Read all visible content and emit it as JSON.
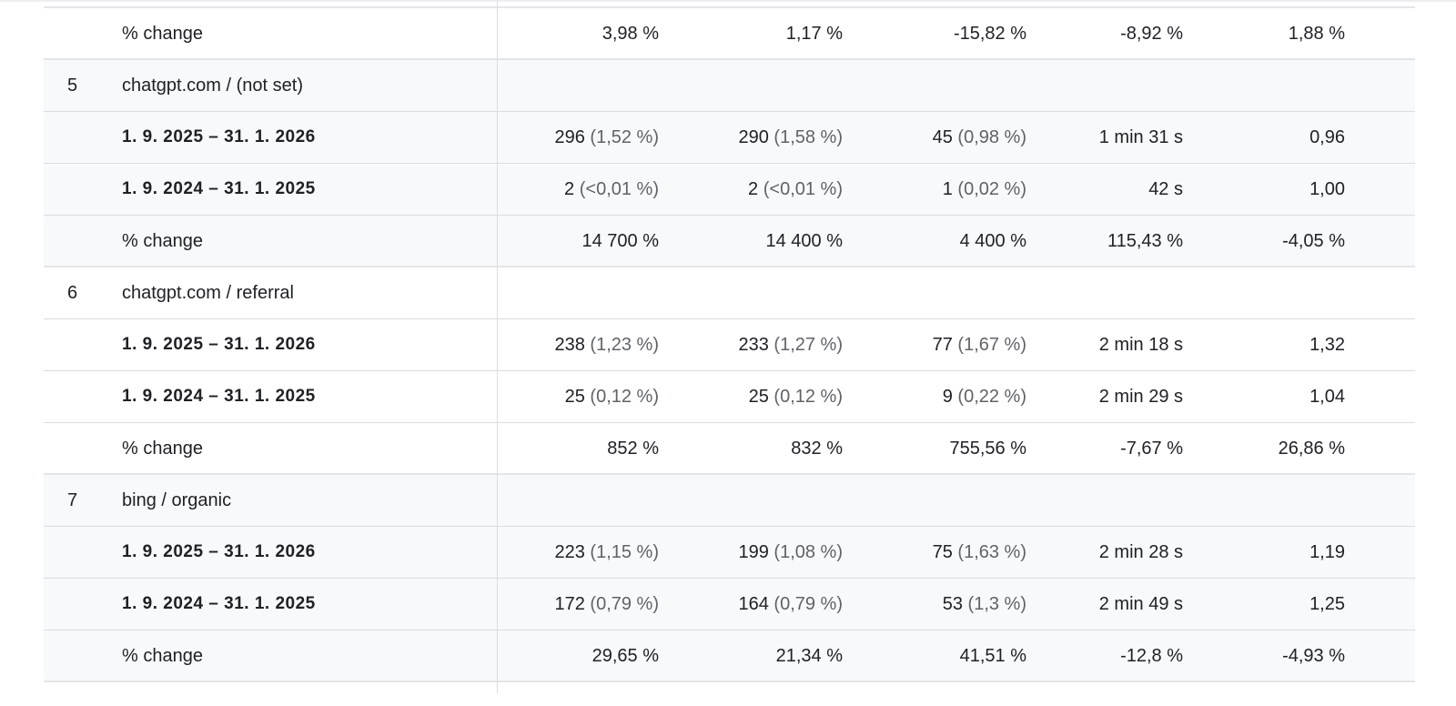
{
  "table": {
    "top_partial": {
      "label": "% change",
      "values": [
        "3,98 %",
        "1,17 %",
        "-15,82 %",
        "-8,92 %",
        "1,88 %"
      ]
    },
    "groups": [
      {
        "rank": "5",
        "name": "chatgpt.com / (not set)",
        "background": "#f8f9fa",
        "current": {
          "label": "1. 9. 2025 – 31. 1. 2026",
          "c1": {
            "value": "296",
            "share": "(1,52 %)"
          },
          "c2": {
            "value": "290",
            "share": "(1,58 %)"
          },
          "c3": {
            "value": "45",
            "share": "(0,98 %)"
          },
          "c4": "1 min 31 s",
          "c5": "0,96"
        },
        "previous": {
          "label": "1. 9. 2024 – 31. 1. 2025",
          "c1": {
            "value": "2",
            "share": "(<0,01 %)"
          },
          "c2": {
            "value": "2",
            "share": "(<0,01 %)"
          },
          "c3": {
            "value": "1",
            "share": "(0,02 %)"
          },
          "c4": "42 s",
          "c5": "1,00"
        },
        "change": {
          "label": "% change",
          "values": [
            "14 700 %",
            "14 400 %",
            "4 400 %",
            "115,43 %",
            "-4,05 %"
          ]
        }
      },
      {
        "rank": "6",
        "name": "chatgpt.com / referral",
        "background": "#ffffff",
        "current": {
          "label": "1. 9. 2025 – 31. 1. 2026",
          "c1": {
            "value": "238",
            "share": "(1,23 %)"
          },
          "c2": {
            "value": "233",
            "share": "(1,27 %)"
          },
          "c3": {
            "value": "77",
            "share": "(1,67 %)"
          },
          "c4": "2 min 18 s",
          "c5": "1,32"
        },
        "previous": {
          "label": "1. 9. 2024 – 31. 1. 2025",
          "c1": {
            "value": "25",
            "share": "(0,12 %)"
          },
          "c2": {
            "value": "25",
            "share": "(0,12 %)"
          },
          "c3": {
            "value": "9",
            "share": "(0,22 %)"
          },
          "c4": "2 min 29 s",
          "c5": "1,04"
        },
        "change": {
          "label": "% change",
          "values": [
            "852 %",
            "832 %",
            "755,56 %",
            "-7,67 %",
            "26,86 %"
          ]
        }
      },
      {
        "rank": "7",
        "name": "bing / organic",
        "background": "#f8f9fa",
        "current": {
          "label": "1. 9. 2025 – 31. 1. 2026",
          "c1": {
            "value": "223",
            "share": "(1,15 %)"
          },
          "c2": {
            "value": "199",
            "share": "(1,08 %)"
          },
          "c3": {
            "value": "75",
            "share": "(1,63 %)"
          },
          "c4": "2 min 28 s",
          "c5": "1,19"
        },
        "previous": {
          "label": "1. 9. 2024 – 31. 1. 2025",
          "c1": {
            "value": "172",
            "share": "(0,79 %)"
          },
          "c2": {
            "value": "164",
            "share": "(0,79 %)"
          },
          "c3": {
            "value": "53",
            "share": "(1,3 %)"
          },
          "c4": "2 min 49 s",
          "c5": "1,25"
        },
        "change": {
          "label": "% change",
          "values": [
            "29,65 %",
            "21,34 %",
            "41,51 %",
            "-12,8 %",
            "-4,93 %"
          ]
        }
      }
    ]
  },
  "colors": {
    "text_primary": "#202124",
    "text_secondary": "#5f6368",
    "row_gray": "#f8f9fa",
    "border": "#dadce0"
  }
}
